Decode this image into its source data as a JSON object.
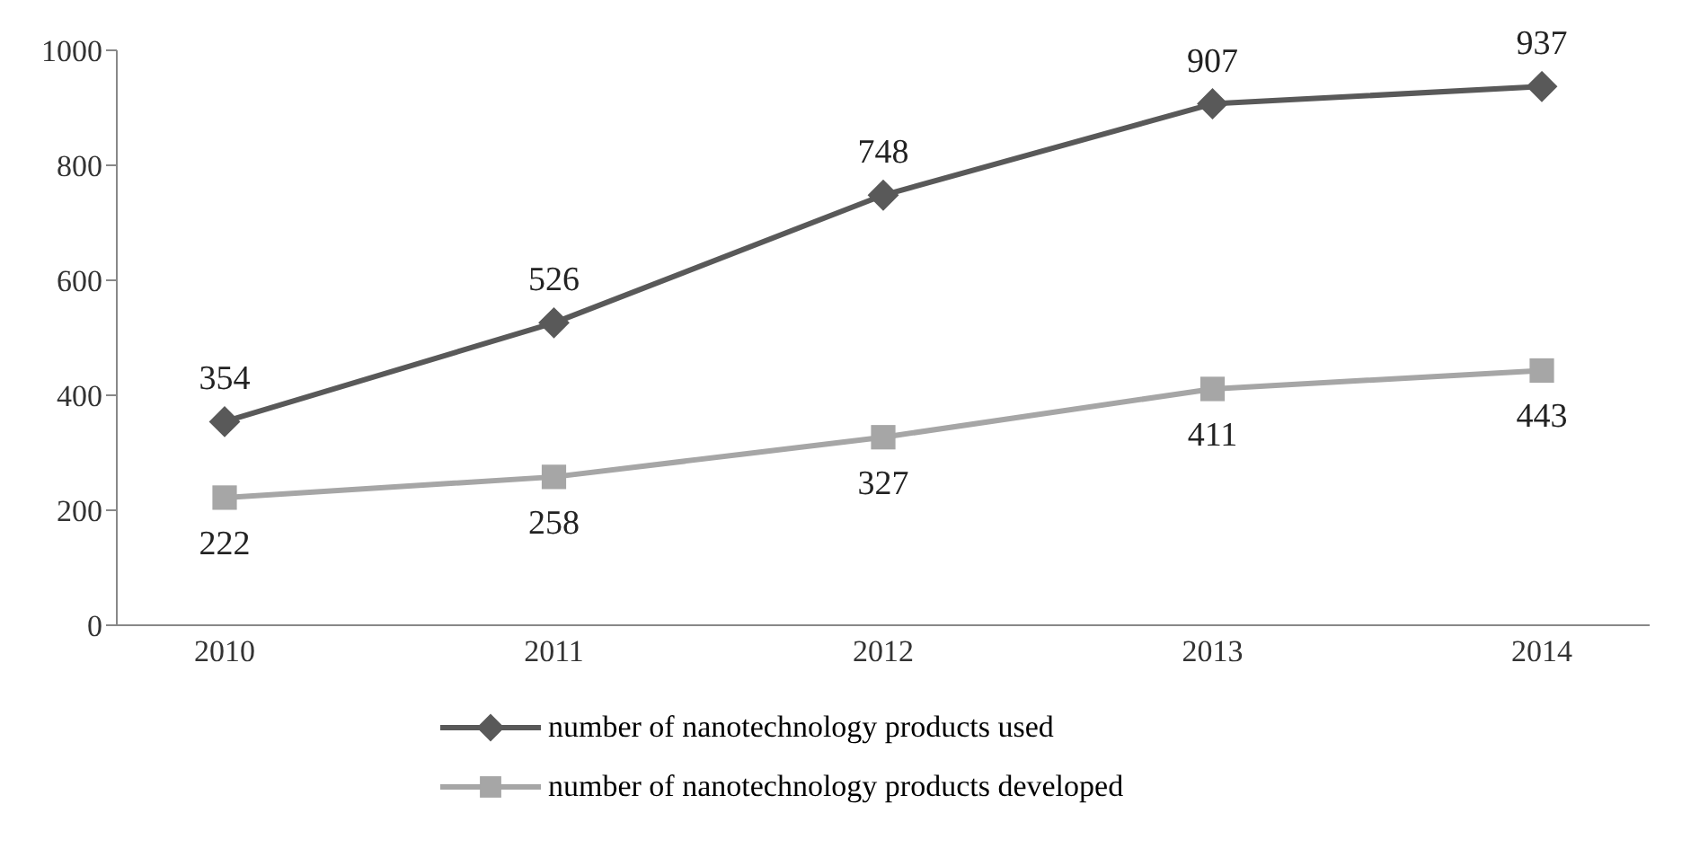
{
  "chart_data": {
    "type": "line",
    "categories": [
      "2010",
      "2011",
      "2012",
      "2013",
      "2014"
    ],
    "series": [
      {
        "name": "number of nanotechnology products used",
        "color": "#595959",
        "marker": "diamond",
        "values": [
          354,
          526,
          748,
          907,
          937
        ]
      },
      {
        "name": "number of nanotechnology products developed",
        "color": "#a6a6a6",
        "marker": "square",
        "values": [
          222,
          258,
          327,
          411,
          443
        ]
      }
    ],
    "ylim": [
      0,
      1000
    ],
    "yticks": [
      0,
      200,
      400,
      600,
      800,
      1000
    ],
    "grid": false,
    "legend": "bottom",
    "data_labels": true,
    "line_style": "solid"
  }
}
